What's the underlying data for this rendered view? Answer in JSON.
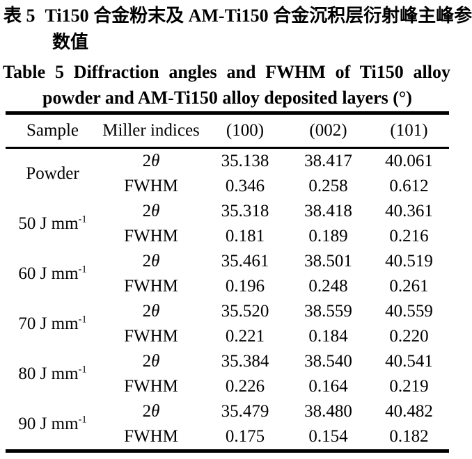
{
  "page": {
    "background_color": "#ffffff",
    "text_color": "#000000"
  },
  "titles": {
    "cn": {
      "label": "表 5",
      "line1": "Ti150 合金粉末及 AM-Ti150 合金沉积层衍射峰主峰参",
      "line2": "数值"
    },
    "en": {
      "label": "Table 5",
      "line1": "Diffraction angles and FWHM of Ti150 alloy",
      "line2": "powder and AM-Ti150 alloy deposited layers (°)"
    }
  },
  "table": {
    "columns": [
      "Sample",
      "Miller indices",
      "(100)",
      "(002)",
      "(101)"
    ],
    "row_labels": {
      "two_theta_num": "2",
      "two_theta_sym": "θ",
      "fwhm": "FWHM"
    },
    "groups": [
      {
        "sample": {
          "base": "Powder",
          "sup": ""
        },
        "two_theta": [
          "35.138",
          "38.417",
          "40.061"
        ],
        "fwhm": [
          "0.346",
          "0.258",
          "0.612"
        ]
      },
      {
        "sample": {
          "base": "50 J mm",
          "sup": "-1"
        },
        "two_theta": [
          "35.318",
          "38.418",
          "40.361"
        ],
        "fwhm": [
          "0.181",
          "0.189",
          "0.216"
        ]
      },
      {
        "sample": {
          "base": "60 J mm",
          "sup": "-1"
        },
        "two_theta": [
          "35.461",
          "38.501",
          "40.519"
        ],
        "fwhm": [
          "0.196",
          "0.248",
          "0.261"
        ]
      },
      {
        "sample": {
          "base": "70 J mm",
          "sup": "-1"
        },
        "two_theta": [
          "35.520",
          "38.559",
          "40.559"
        ],
        "fwhm": [
          "0.221",
          "0.184",
          "0.220"
        ]
      },
      {
        "sample": {
          "base": "80 J mm",
          "sup": "-1"
        },
        "two_theta": [
          "35.384",
          "38.540",
          "40.541"
        ],
        "fwhm": [
          "0.226",
          "0.164",
          "0.219"
        ]
      },
      {
        "sample": {
          "base": "90 J mm",
          "sup": "-1"
        },
        "two_theta": [
          "35.479",
          "38.480",
          "40.482"
        ],
        "fwhm": [
          "0.175",
          "0.154",
          "0.182"
        ]
      }
    ]
  }
}
